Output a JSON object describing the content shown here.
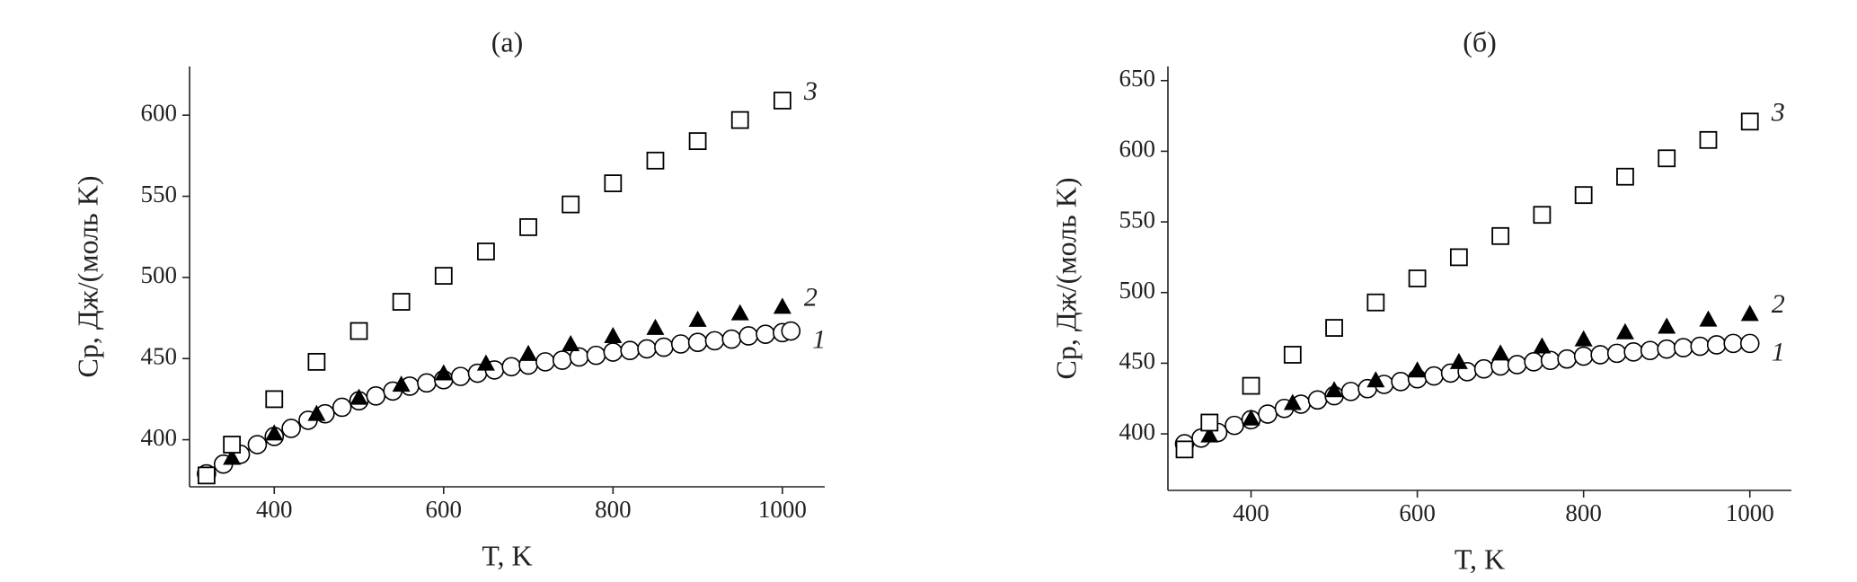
{
  "chart_data": [
    {
      "type": "scatter",
      "title": "(a)",
      "xlabel": "T, K",
      "ylabel": "Cp, Дж/(моль K)",
      "xlim": [
        300,
        1050
      ],
      "ylim": [
        371,
        630
      ],
      "xticks": [
        400,
        600,
        800,
        1000
      ],
      "yticks": [
        400,
        450,
        500,
        550,
        600
      ],
      "series": [
        {
          "name": "1",
          "color": "#000000",
          "marker": "circle",
          "line": true,
          "x": [
            320,
            340,
            360,
            380,
            400,
            420,
            440,
            460,
            480,
            500,
            520,
            540,
            560,
            580,
            600,
            620,
            640,
            660,
            680,
            700,
            720,
            740,
            760,
            780,
            800,
            820,
            840,
            860,
            880,
            900,
            920,
            940,
            960,
            980,
            1000,
            1010
          ],
          "values": [
            379,
            385,
            391,
            397,
            402,
            407,
            412,
            416,
            420,
            424,
            427,
            430,
            433,
            435,
            437,
            439,
            441,
            443,
            445,
            446,
            448,
            449,
            451,
            452,
            454,
            455,
            456,
            457,
            459,
            460,
            461,
            462,
            464,
            465,
            466,
            467
          ]
        },
        {
          "name": "2",
          "color": "#000000",
          "marker": "triangle",
          "line": false,
          "x": [
            350,
            400,
            450,
            500,
            550,
            600,
            650,
            700,
            750,
            800,
            850,
            900,
            950,
            1000
          ],
          "values": [
            389,
            404,
            416,
            426,
            434,
            441,
            447,
            453,
            459,
            464,
            469,
            474,
            478,
            482
          ]
        },
        {
          "name": "3",
          "color": "#000000",
          "marker": "square",
          "line": false,
          "x": [
            320,
            350,
            400,
            450,
            500,
            550,
            600,
            650,
            700,
            750,
            800,
            850,
            900,
            950,
            1000
          ],
          "values": [
            378,
            397,
            425,
            448,
            467,
            485,
            501,
            516,
            531,
            545,
            558,
            572,
            584,
            597,
            609
          ]
        }
      ]
    },
    {
      "type": "scatter",
      "title": "(б)",
      "xlabel": "T, K",
      "ylabel": "Cp, Дж/(моль K)",
      "xlim": [
        300,
        1050
      ],
      "ylim": [
        360,
        660
      ],
      "xticks": [
        400,
        600,
        800,
        1000
      ],
      "yticks": [
        400,
        450,
        500,
        550,
        600,
        650
      ],
      "series": [
        {
          "name": "1",
          "color": "#000000",
          "marker": "circle",
          "line": true,
          "x": [
            320,
            340,
            360,
            380,
            400,
            420,
            440,
            460,
            480,
            500,
            520,
            540,
            560,
            580,
            600,
            620,
            640,
            660,
            680,
            700,
            720,
            740,
            760,
            780,
            800,
            820,
            840,
            860,
            880,
            900,
            920,
            940,
            960,
            980,
            1000
          ],
          "values": [
            393,
            397,
            401,
            406,
            410,
            414,
            418,
            421,
            424,
            427,
            430,
            432,
            435,
            437,
            439,
            441,
            443,
            444,
            446,
            448,
            449,
            451,
            452,
            453,
            455,
            456,
            457,
            458,
            459,
            460,
            461,
            462,
            463,
            464,
            464
          ]
        },
        {
          "name": "2",
          "color": "#000000",
          "marker": "triangle",
          "line": false,
          "x": [
            350,
            400,
            450,
            500,
            550,
            600,
            650,
            700,
            750,
            800,
            850,
            900,
            950,
            1000
          ],
          "values": [
            399,
            411,
            422,
            431,
            438,
            445,
            451,
            457,
            462,
            467,
            472,
            476,
            481,
            485
          ]
        },
        {
          "name": "3",
          "color": "#000000",
          "marker": "square",
          "line": false,
          "x": [
            320,
            350,
            400,
            450,
            500,
            550,
            600,
            650,
            700,
            750,
            800,
            850,
            900,
            950,
            1000
          ],
          "values": [
            389,
            408,
            434,
            456,
            475,
            493,
            510,
            525,
            540,
            555,
            569,
            582,
            595,
            608,
            621
          ]
        }
      ]
    }
  ]
}
